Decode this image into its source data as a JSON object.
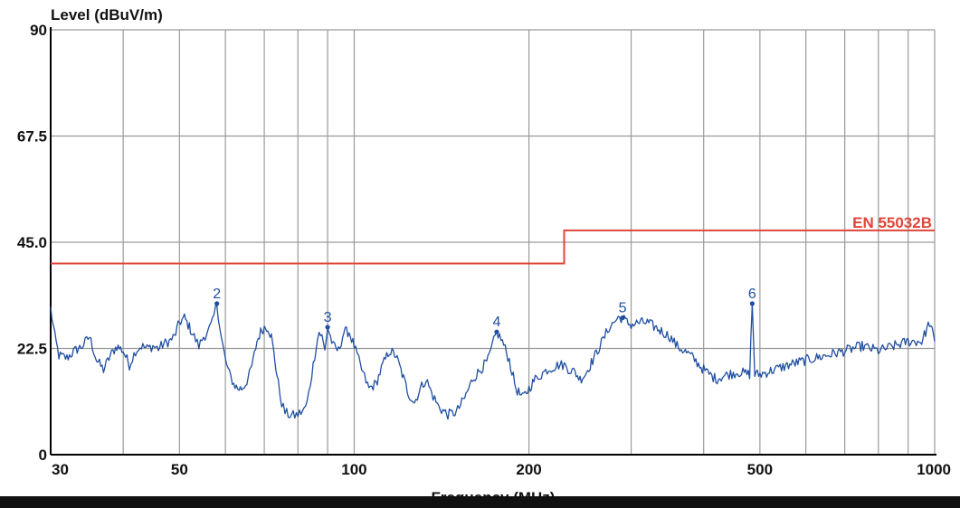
{
  "chart_data": {
    "type": "line",
    "title": "",
    "ylabel": "Level (dBuV/m)",
    "xlabel": "Frequency (MHz)",
    "x_scale": "log",
    "xlim": [
      30,
      1000
    ],
    "ylim": [
      0,
      90
    ],
    "x_tick_labels": [
      "30",
      "50",
      "100",
      "200",
      "500",
      "1000"
    ],
    "x_tick_values": [
      30,
      50,
      100,
      200,
      500,
      1000
    ],
    "y_tick_labels": [
      "0",
      "22.5",
      "45.0",
      "67.5",
      "90"
    ],
    "y_tick_values": [
      0,
      22.5,
      45,
      67.5,
      90
    ],
    "x_gridlines": [
      30,
      40,
      50,
      60,
      70,
      80,
      90,
      100,
      200,
      300,
      400,
      500,
      600,
      700,
      800,
      900,
      1000
    ],
    "y_gridlines": [
      0,
      22.5,
      45,
      67.5,
      90
    ],
    "grid": true,
    "colors": {
      "trace": "#1f4fa0",
      "limit": "#e0463a",
      "grid": "#9a9a9a",
      "axis": "#000000",
      "marker": "#1f4fa0"
    },
    "limit_line": {
      "name": "EN 55032B",
      "points": [
        [
          30,
          40.5
        ],
        [
          230,
          40.5
        ],
        [
          230,
          47.5
        ],
        [
          1000,
          47.5
        ]
      ]
    },
    "series": [
      {
        "values": [
          [
            30,
            31
          ],
          [
            30.5,
            25
          ],
          [
            31,
            21
          ],
          [
            32,
            20.5
          ],
          [
            33,
            22
          ],
          [
            34,
            23
          ],
          [
            35,
            25
          ],
          [
            36,
            20
          ],
          [
            37,
            18
          ],
          [
            38,
            21
          ],
          [
            39,
            23
          ],
          [
            40,
            22
          ],
          [
            41,
            19
          ],
          [
            42,
            22
          ],
          [
            43,
            23
          ],
          [
            44,
            22.5
          ],
          [
            45,
            23
          ],
          [
            46,
            22.5
          ],
          [
            47,
            23.5
          ],
          [
            48,
            24
          ],
          [
            49,
            25
          ],
          [
            50,
            28
          ],
          [
            51,
            29
          ],
          [
            52,
            27
          ],
          [
            53,
            25
          ],
          [
            54,
            23
          ],
          [
            55,
            25
          ],
          [
            56,
            26
          ],
          [
            57,
            28
          ],
          [
            58,
            32
          ],
          [
            59,
            25
          ],
          [
            60,
            20
          ],
          [
            61,
            17
          ],
          [
            62,
            15
          ],
          [
            63,
            14
          ],
          [
            64,
            14
          ],
          [
            65,
            15
          ],
          [
            66,
            17
          ],
          [
            67,
            20
          ],
          [
            68,
            24
          ],
          [
            69,
            26
          ],
          [
            70,
            27
          ],
          [
            71,
            27
          ],
          [
            72,
            25
          ],
          [
            73,
            20
          ],
          [
            74,
            15
          ],
          [
            75,
            11
          ],
          [
            76,
            9
          ],
          [
            77,
            8.5
          ],
          [
            78,
            8.3
          ],
          [
            79,
            8.3
          ],
          [
            80,
            8.5
          ],
          [
            81,
            9
          ],
          [
            82,
            9.5
          ],
          [
            83,
            11
          ],
          [
            84,
            15
          ],
          [
            85,
            19
          ],
          [
            86,
            23
          ],
          [
            87,
            26
          ],
          [
            88,
            25
          ],
          [
            89,
            22
          ],
          [
            90,
            27
          ],
          [
            92,
            23
          ],
          [
            94,
            22
          ],
          [
            96,
            26
          ],
          [
            98,
            26
          ],
          [
            100,
            23
          ],
          [
            103,
            18
          ],
          [
            106,
            14
          ],
          [
            109,
            15
          ],
          [
            112,
            19
          ],
          [
            115,
            22
          ],
          [
            118,
            21
          ],
          [
            121,
            17
          ],
          [
            124,
            13
          ],
          [
            127,
            11
          ],
          [
            130,
            14
          ],
          [
            133,
            16
          ],
          [
            136,
            13
          ],
          [
            140,
            10
          ],
          [
            145,
            8.5
          ],
          [
            150,
            9
          ],
          [
            155,
            12
          ],
          [
            160,
            16
          ],
          [
            165,
            18
          ],
          [
            170,
            20
          ],
          [
            176,
            26
          ],
          [
            180,
            24
          ],
          [
            185,
            20
          ],
          [
            190,
            14
          ],
          [
            195,
            12
          ],
          [
            200,
            14
          ],
          [
            205,
            16
          ],
          [
            210,
            17
          ],
          [
            215,
            18
          ],
          [
            220,
            18.5
          ],
          [
            225,
            19
          ],
          [
            230,
            19
          ],
          [
            235,
            18
          ],
          [
            240,
            17.5
          ],
          [
            245,
            16
          ],
          [
            250,
            17
          ],
          [
            255,
            19
          ],
          [
            260,
            21
          ],
          [
            265,
            23
          ],
          [
            270,
            25
          ],
          [
            275,
            27
          ],
          [
            280,
            28
          ],
          [
            285,
            29
          ],
          [
            290,
            29
          ],
          [
            295,
            28
          ],
          [
            300,
            27.5
          ],
          [
            310,
            28
          ],
          [
            320,
            28
          ],
          [
            330,
            27
          ],
          [
            340,
            26
          ],
          [
            350,
            25
          ],
          [
            360,
            23
          ],
          [
            380,
            21
          ],
          [
            400,
            18
          ],
          [
            420,
            16
          ],
          [
            440,
            17
          ],
          [
            460,
            17.5
          ],
          [
            480,
            17
          ],
          [
            485,
            32
          ],
          [
            490,
            17
          ],
          [
            500,
            17
          ],
          [
            530,
            18
          ],
          [
            560,
            19
          ],
          [
            600,
            20
          ],
          [
            650,
            21
          ],
          [
            700,
            22
          ],
          [
            750,
            23
          ],
          [
            800,
            22
          ],
          [
            850,
            23
          ],
          [
            900,
            24
          ],
          [
            950,
            24
          ],
          [
            980,
            28
          ],
          [
            1000,
            24
          ]
        ]
      }
    ],
    "markers": [
      {
        "label": "2",
        "x": 58,
        "y": 32
      },
      {
        "label": "3",
        "x": 90,
        "y": 27
      },
      {
        "label": "4",
        "x": 176,
        "y": 26
      },
      {
        "label": "5",
        "x": 290,
        "y": 29
      },
      {
        "label": "6",
        "x": 485,
        "y": 32
      }
    ]
  }
}
